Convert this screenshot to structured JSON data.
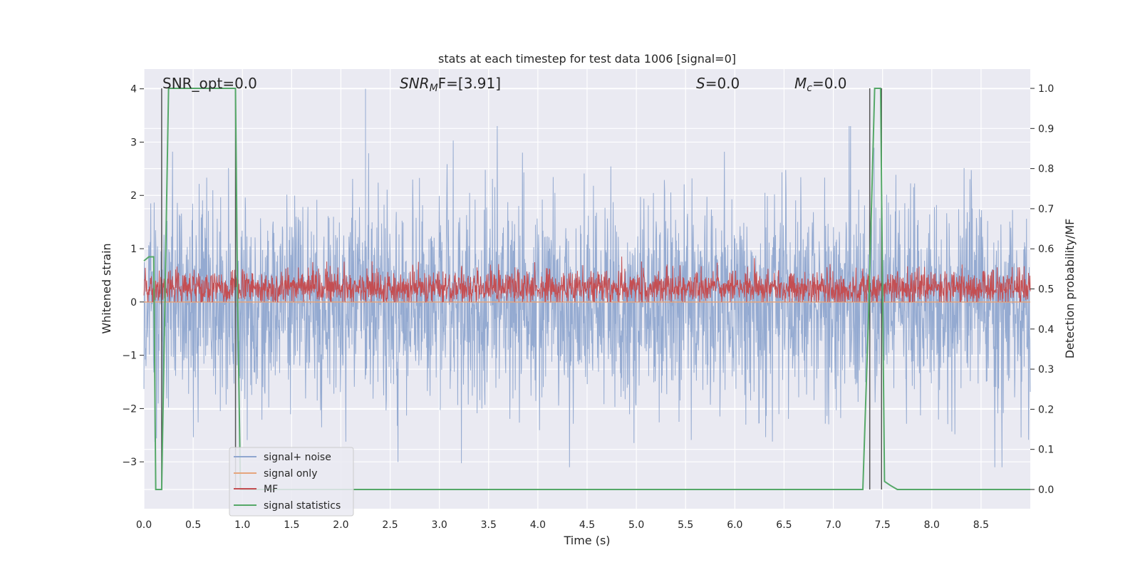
{
  "chart_data": {
    "type": "line",
    "title": "stats at each timestep for test data 1006 [signal=0]",
    "xlabel": "Time (s)",
    "ylabel_left": "Whitened strain",
    "ylabel_right": "Detection probability/MF",
    "xlim": [
      0.0,
      9.0
    ],
    "ylim_left": [
      -3.88,
      4.37
    ],
    "ylim_right": [
      -0.048,
      1.048
    ],
    "x_ticks": [
      "0.0",
      "0.5",
      "1.0",
      "1.5",
      "2.0",
      "2.5",
      "3.0",
      "3.5",
      "4.0",
      "4.5",
      "5.0",
      "5.5",
      "6.0",
      "6.5",
      "7.0",
      "7.5",
      "8.0",
      "8.5"
    ],
    "y_ticks_left": [
      "−3",
      "−2",
      "−1",
      "0",
      "1",
      "2",
      "3",
      "4"
    ],
    "y_ticks_right": [
      "0.0",
      "0.1",
      "0.2",
      "0.3",
      "0.4",
      "0.5",
      "0.6",
      "0.7",
      "0.8",
      "0.9",
      "1.0"
    ],
    "grid": true,
    "legend_position": "lower-left",
    "annotations": {
      "snr_opt": "SNR_opt=0.0",
      "snr_mf_label": "SNR",
      "snr_mf_sub": "M",
      "snr_mf_rest": "F=[3.91]",
      "s_label": "S",
      "s_rest": "=0.0",
      "mc_label": "M",
      "mc_sub": "c",
      "mc_rest": "=0.0"
    },
    "series": [
      {
        "name": "signal+ noise",
        "color": "#8fa6cf",
        "axis": "left",
        "description_values": {
          "range": [
            -3.1,
            4.0
          ],
          "peak_x": 2.25,
          "peak_y": 4.0
        }
      },
      {
        "name": "signal only",
        "color": "#e5a57d",
        "axis": "left",
        "values_constant": 0.0
      },
      {
        "name": "MF",
        "color": "#c44e52",
        "axis": "left",
        "description_values": {
          "range": [
            0.0,
            0.97
          ]
        }
      },
      {
        "name": "signal statistics",
        "color": "#55a868",
        "axis": "right",
        "x": [
          0.0,
          0.05,
          0.1,
          0.12,
          0.18,
          0.25,
          0.93,
          0.95,
          0.98,
          7.3,
          7.36,
          7.42,
          7.48,
          7.52,
          7.58,
          7.65,
          9.0
        ],
        "y": [
          0.57,
          0.58,
          0.58,
          0.0,
          0.0,
          1.0,
          1.0,
          0.5,
          0.0,
          0.0,
          0.45,
          1.0,
          1.0,
          0.02,
          0.01,
          0.0,
          0.0
        ]
      }
    ],
    "vertical_lines_x": [
      0.18,
      0.93,
      7.37,
      7.49
    ],
    "vertical_lines_color": "#555555"
  }
}
